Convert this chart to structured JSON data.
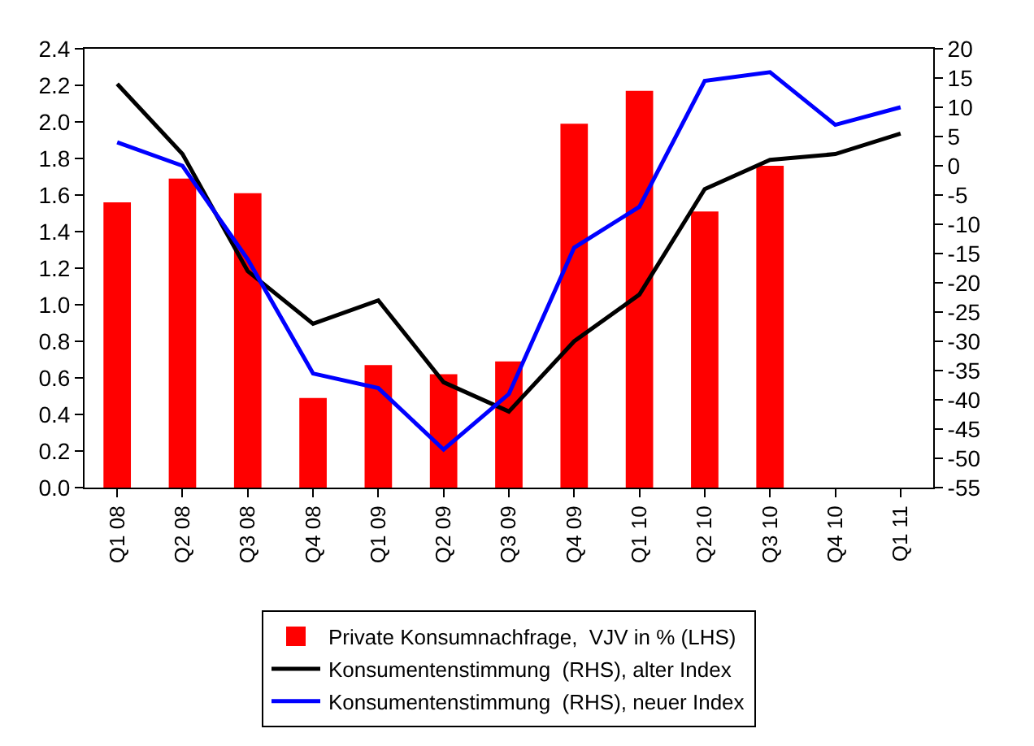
{
  "chart_data": {
    "type": "bar",
    "categories": [
      "Q1 08",
      "Q2 08",
      "Q3 08",
      "Q4 08",
      "Q1 09",
      "Q2 09",
      "Q3 09",
      "Q4 09",
      "Q1 10",
      "Q2 10",
      "Q3 10",
      "Q4 10",
      "Q1 11"
    ],
    "series": [
      {
        "name": "Private Konsumnachfrage,  VJV in % (LHS)",
        "color": "#ff0000",
        "values": [
          1.56,
          1.69,
          1.61,
          0.49,
          0.67,
          0.62,
          0.69,
          1.99,
          2.17,
          1.51,
          1.76,
          null,
          null
        ]
      },
      {
        "name": "Konsumentenstimmung  (RHS), alter Index",
        "color": "#000000",
        "type": "line",
        "axis": "y2",
        "values": [
          14,
          2,
          -18,
          -27,
          -23,
          -37,
          -42,
          -30,
          -22,
          -4,
          1,
          2,
          5.5
        ]
      },
      {
        "name": "Konsumentenstimmung  (RHS), neuer Index",
        "color": "#0000ff",
        "type": "line",
        "axis": "y2",
        "values": [
          4,
          0,
          -16,
          -35.5,
          -38,
          -48.5,
          -39,
          -14,
          -7,
          14.5,
          16,
          7,
          10
        ]
      }
    ],
    "ylim": [
      0,
      2.4
    ],
    "yticks": [
      {
        "value": 0,
        "label": "0.0"
      },
      {
        "value": 0.2,
        "label": "0.2"
      },
      {
        "value": 0.4,
        "label": "0.4"
      },
      {
        "value": 0.6,
        "label": "0.6"
      },
      {
        "value": 0.8,
        "label": "0.8"
      },
      {
        "value": 1,
        "label": "1.0"
      },
      {
        "value": 1.2,
        "label": "1.2"
      },
      {
        "value": 1.4,
        "label": "1.4"
      },
      {
        "value": 1.6,
        "label": "1.6"
      },
      {
        "value": 1.8,
        "label": "1.8"
      },
      {
        "value": 2,
        "label": "2.0"
      },
      {
        "value": 2.2,
        "label": "2.2"
      },
      {
        "value": 2.4,
        "label": "2.4"
      }
    ],
    "y2lim": [
      -55,
      20
    ],
    "y2ticks": [
      -55,
      -50,
      -45,
      -40,
      -35,
      -30,
      -25,
      -20,
      -15,
      -10,
      -5,
      0,
      5,
      10,
      15,
      20
    ],
    "legend": "bottom",
    "grid": false,
    "marker": "none",
    "line_style": "solid"
  }
}
